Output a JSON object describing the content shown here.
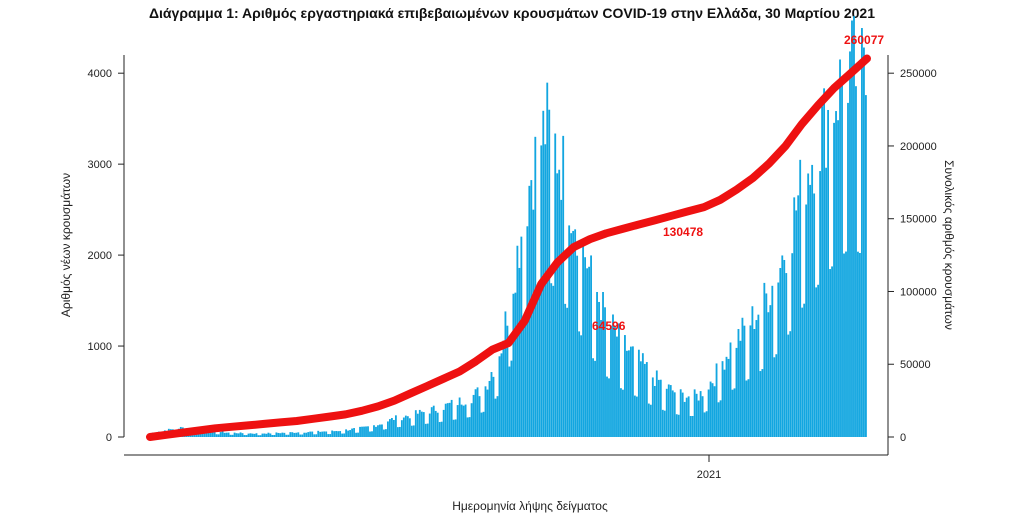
{
  "chart_data": {
    "type": "bar",
    "title": "Διάγραμμα 1: Αριθμός εργαστηριακά επιβεβαιωμένων κρουσμάτων COVID-19 στην Ελλάδα, 30 Μαρτίου 2021",
    "xlabel": "Ημερομηνία λήψης δείγματος",
    "ylabel_left": "Αριθμός νέων κρουσμάτων",
    "ylabel_right": "Συνολικός αριθμός κρουσμάτων",
    "x_tick_labels": [
      "2021"
    ],
    "y_left_ticks": [
      0,
      1000,
      2000,
      3000,
      4000
    ],
    "y_right_ticks": [
      0,
      50000,
      100000,
      150000,
      200000,
      250000
    ],
    "y_left_lim": [
      0,
      4200
    ],
    "y_right_lim": [
      0,
      262500
    ],
    "bar_color": "#12a6e0",
    "line_color": "#ee1111",
    "daily_new_cases_weekly_avg": [
      40,
      70,
      95,
      80,
      60,
      45,
      40,
      35,
      40,
      45,
      50,
      55,
      60,
      75,
      95,
      130,
      190,
      220,
      260,
      300,
      350,
      400,
      520,
      900,
      1800,
      2700,
      3200,
      2800,
      2200,
      1600,
      1200,
      950,
      800,
      620,
      500,
      420,
      420,
      600,
      900,
      1100,
      1300,
      1600,
      2100,
      2700,
      3100,
      3500,
      3800,
      3600
    ],
    "cumulative_cases_series": [
      0,
      1500,
      3000,
      4500,
      6000,
      7000,
      8000,
      9000,
      10000,
      11000,
      12500,
      14000,
      15500,
      18000,
      21000,
      25000,
      30000,
      35000,
      40000,
      45000,
      52000,
      60000,
      64596,
      80000,
      105000,
      120000,
      130478,
      136000,
      140000,
      143000,
      146000,
      149000,
      152000,
      155000,
      158000,
      163000,
      170000,
      178000,
      188000,
      200000,
      215000,
      228000,
      240000,
      250000,
      260077
    ],
    "annotations": [
      "64596",
      "130478",
      "260077"
    ]
  }
}
